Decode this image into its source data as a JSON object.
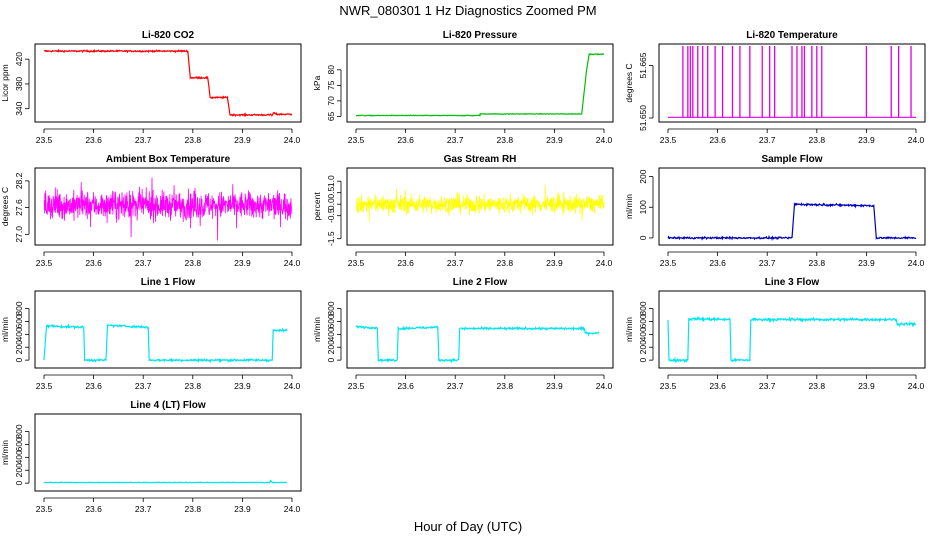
{
  "figure": {
    "title": "NWR_080301  1 Hz Diagnostics Zoomed PM",
    "xlabel": "Hour of Day (UTC)"
  },
  "chart_data": [
    {
      "type": "line",
      "title": "Li-820 CO2",
      "ylabel": "Licor ppm",
      "color": "#ff0000",
      "xlim": [
        23.5,
        24.0
      ],
      "ylim": [
        325,
        438
      ],
      "yticks": [
        "340",
        "380",
        "420"
      ],
      "xticks": [
        "23.5",
        "23.6",
        "23.7",
        "23.8",
        "23.9",
        "24.0"
      ],
      "noise": 0.6,
      "series": [
        {
          "x": [
            23.5,
            23.79,
            23.795,
            23.83,
            23.835,
            23.87,
            23.875,
            23.96,
            23.963,
            23.97,
            24.0
          ],
          "y": [
            433,
            433,
            390,
            390,
            358,
            358,
            330,
            330,
            333,
            331,
            331
          ]
        }
      ]
    },
    {
      "type": "line",
      "title": "Li-820 Pressure",
      "ylabel": "kPa",
      "color": "#00c000",
      "xlim": [
        23.5,
        24.0
      ],
      "ylim": [
        64.5,
        87
      ],
      "yticks": [
        "65",
        "70",
        "75",
        "80"
      ],
      "xticks": [
        "23.5",
        "23.6",
        "23.7",
        "23.8",
        "23.9",
        "24.0"
      ],
      "noise": 0.05,
      "series": [
        {
          "x": [
            23.5,
            23.75,
            23.75,
            23.95,
            23.955,
            23.96,
            23.965,
            23.97,
            24.0
          ],
          "y": [
            65.3,
            65.3,
            65.8,
            65.8,
            65.7,
            73,
            80,
            85,
            85
          ]
        }
      ]
    },
    {
      "type": "spikes",
      "title": "Li-820 Temperature",
      "ylabel": "degrees C",
      "color": "#e000e0",
      "xlim": [
        23.5,
        24.0
      ],
      "ylim": [
        51.65,
        51.67
      ],
      "yticks": [
        "51.650",
        "51.665"
      ],
      "xticks": [
        "23.5",
        "23.6",
        "23.7",
        "23.8",
        "23.9",
        "24.0"
      ],
      "spike_x": [
        23.53,
        23.54,
        23.545,
        23.55,
        23.56,
        23.57,
        23.58,
        23.595,
        23.61,
        23.63,
        23.645,
        23.665,
        23.69,
        23.705,
        23.715,
        23.75,
        23.76,
        23.77,
        23.775,
        23.79,
        23.8,
        23.81,
        23.9,
        23.95,
        23.965,
        23.99
      ]
    },
    {
      "type": "noisy",
      "title": "Ambient Box Temperature",
      "ylabel": "degrees C",
      "color": "#ff00ff",
      "xlim": [
        23.5,
        24.0
      ],
      "ylim": [
        26.85,
        28.4
      ],
      "yticks": [
        "27.0",
        "27.6",
        "28.2"
      ],
      "xticks": [
        "23.5",
        "23.6",
        "23.7",
        "23.8",
        "23.9",
        "24.0"
      ],
      "center": 27.65,
      "spread": 0.28
    },
    {
      "type": "noisy",
      "title": "Gas Stream RH",
      "ylabel": "percent",
      "color": "#ffff00",
      "xlim": [
        23.5,
        24.0
      ],
      "ylim": [
        -1.6,
        1.4
      ],
      "yticks": [
        "-1.5",
        "-0.5",
        "0.0",
        "0.5",
        "1.0"
      ],
      "xticks": [
        "23.5",
        "23.6",
        "23.7",
        "23.8",
        "23.9",
        "24.0"
      ],
      "center": 0.0,
      "spread": 0.35
    },
    {
      "type": "line",
      "title": "Sample Flow",
      "ylabel": "ml/min",
      "color": "#0000c0",
      "xlim": [
        23.5,
        24.0
      ],
      "ylim": [
        -10,
        215
      ],
      "yticks": [
        "0",
        "100",
        "200"
      ],
      "xticks": [
        "23.5",
        "23.6",
        "23.7",
        "23.8",
        "23.9",
        "24.0"
      ],
      "noise": 1.5,
      "series": [
        {
          "x": [
            23.5,
            23.75,
            23.755,
            23.915,
            23.92,
            24.0
          ],
          "y": [
            0,
            0,
            110,
            105,
            0,
            0
          ]
        }
      ]
    },
    {
      "type": "line",
      "title": "Line 1 Flow",
      "ylabel": "ml/min",
      "color": "#00e5ee",
      "xlim": [
        23.5,
        24.0
      ],
      "ylim": [
        -60,
        1010
      ],
      "yticks": [
        "0",
        "200",
        "400",
        "600",
        "800"
      ],
      "xticks": [
        "23.5",
        "23.6",
        "23.7",
        "23.8",
        "23.9",
        "24.0"
      ],
      "noise": 8,
      "series": [
        {
          "x": [
            23.5,
            23.505,
            23.58,
            23.582,
            23.625,
            23.628,
            23.71,
            23.712,
            23.96,
            23.962,
            23.99
          ],
          "y": [
            0,
            530,
            510,
            0,
            0,
            540,
            510,
            0,
            0,
            460,
            460
          ]
        }
      ]
    },
    {
      "type": "line",
      "title": "Line 2 Flow",
      "ylabel": "ml/min",
      "color": "#00e5ee",
      "xlim": [
        23.5,
        24.0
      ],
      "ylim": [
        -60,
        1010
      ],
      "yticks": [
        "0",
        "200",
        "400",
        "600",
        "800"
      ],
      "xticks": [
        "23.5",
        "23.6",
        "23.7",
        "23.8",
        "23.9",
        "24.0"
      ],
      "noise": 8,
      "series": [
        {
          "x": [
            23.5,
            23.543,
            23.545,
            23.583,
            23.585,
            23.665,
            23.667,
            23.707,
            23.709,
            23.96,
            23.962,
            23.99
          ],
          "y": [
            520,
            500,
            0,
            0,
            490,
            510,
            0,
            0,
            490,
            490,
            420,
            420
          ]
        }
      ]
    },
    {
      "type": "line",
      "title": "Line 3 Flow",
      "ylabel": "ml/min",
      "color": "#00e5ee",
      "xlim": [
        23.5,
        24.0
      ],
      "ylim": [
        -60,
        1010
      ],
      "yticks": [
        "0",
        "200",
        "400",
        "600",
        "800"
      ],
      "xticks": [
        "23.5",
        "23.6",
        "23.7",
        "23.8",
        "23.9",
        "24.0"
      ],
      "noise": 10,
      "series": [
        {
          "x": [
            23.5,
            23.502,
            23.504,
            23.54,
            23.542,
            23.625,
            23.627,
            23.665,
            23.667,
            23.96,
            23.962,
            24.0
          ],
          "y": [
            620,
            0,
            0,
            0,
            640,
            630,
            0,
            0,
            630,
            630,
            560,
            560
          ]
        }
      ]
    },
    {
      "type": "line",
      "title": "Line 4 (LT) Flow",
      "ylabel": "ml/min",
      "color": "#00e5ee",
      "xlim": [
        23.5,
        24.0
      ],
      "ylim": [
        -60,
        1010
      ],
      "yticks": [
        "0",
        "200",
        "400",
        "600",
        "800"
      ],
      "xticks": [
        "23.5",
        "23.6",
        "23.7",
        "23.8",
        "23.9",
        "24.0"
      ],
      "noise": 2,
      "series": [
        {
          "x": [
            23.5,
            23.955,
            23.957,
            23.96,
            23.962,
            23.99
          ],
          "y": [
            10,
            10,
            40,
            10,
            10,
            10
          ]
        }
      ]
    }
  ]
}
